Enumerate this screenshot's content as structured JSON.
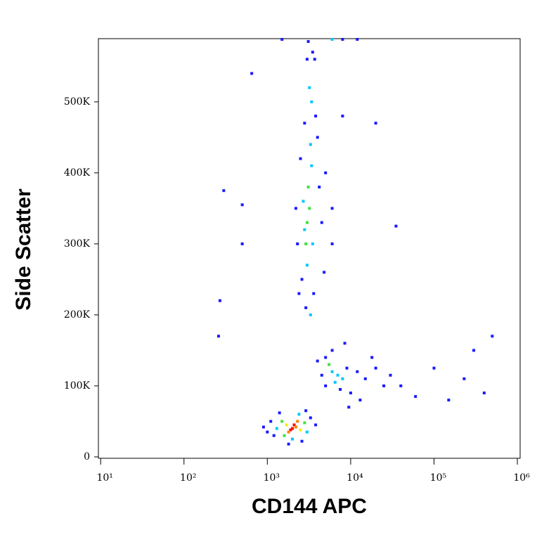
{
  "chart_data": {
    "type": "scatter",
    "x_label": "CD144 APC",
    "y_label": "Side Scatter",
    "xscale": "log",
    "xlim": [
      9.4,
      1080000
    ],
    "xticks": [
      {
        "value": 10,
        "label": "10¹"
      },
      {
        "value": 100,
        "label": "10²"
      },
      {
        "value": 1000,
        "label": "10³"
      },
      {
        "value": 10000,
        "label": "10⁴"
      },
      {
        "value": 100000,
        "label": "10⁵"
      },
      {
        "value": 1000000,
        "label": "10⁶"
      }
    ],
    "ylim": [
      -2000,
      589000
    ],
    "yticks": [
      0,
      {
        "value": 100000,
        "label": "100K"
      },
      {
        "value": 200000,
        "label": "200K"
      },
      {
        "value": 300000,
        "label": "300K"
      },
      {
        "value": 400000,
        "label": "400K"
      },
      {
        "value": 500000,
        "label": "500K"
      }
    ],
    "x": [
      2000,
      2100,
      1900,
      2200,
      1800,
      2300,
      1700,
      2500,
      1600,
      2800,
      1500,
      2000,
      2400,
      1300,
      3000,
      1200,
      3300,
      1100,
      1800,
      2600,
      1000,
      3800,
      1400,
      900,
      2900,
      6000,
      7000,
      5500,
      8000,
      6500,
      5000,
      9000,
      12000,
      15000,
      4500,
      7500,
      10000,
      20000,
      6000,
      8500,
      25000,
      13000,
      4000,
      18000,
      9500,
      30000,
      5000,
      3000,
      3200,
      2900,
      3100,
      2800,
      3400,
      3000,
      2700,
      3300,
      3500,
      2600,
      3800,
      3200,
      3000,
      3400,
      2500,
      4200,
      4500,
      2300,
      3600,
      2900,
      5000,
      2200,
      4000,
      3100,
      3500,
      2800,
      4800,
      6000,
      2400,
      3300,
      3700,
      8000,
      6000,
      300,
      500,
      270,
      260,
      500,
      650,
      35000,
      20000,
      300000,
      500000,
      230000,
      400000,
      150000,
      100000,
      60000,
      40000,
      6000,
      8000,
      12000,
      1500
    ],
    "y": [
      40000,
      45000,
      38000,
      42000,
      35000,
      50000,
      45000,
      38000,
      30000,
      48000,
      50000,
      25000,
      60000,
      40000,
      35000,
      30000,
      55000,
      50000,
      18000,
      22000,
      35000,
      45000,
      62000,
      42000,
      65000,
      120000,
      115000,
      130000,
      110000,
      105000,
      140000,
      125000,
      120000,
      110000,
      115000,
      95000,
      90000,
      125000,
      150000,
      160000,
      100000,
      80000,
      135000,
      140000,
      70000,
      115000,
      100000,
      330000,
      350000,
      300000,
      380000,
      320000,
      410000,
      270000,
      360000,
      440000,
      300000,
      250000,
      480000,
      520000,
      560000,
      500000,
      420000,
      380000,
      330000,
      300000,
      230000,
      210000,
      400000,
      350000,
      450000,
      585000,
      570000,
      470000,
      260000,
      350000,
      230000,
      200000,
      560000,
      480000,
      300000,
      375000,
      355000,
      220000,
      170000,
      300000,
      540000,
      325000,
      470000,
      150000,
      170000,
      110000,
      90000,
      80000,
      125000,
      85000,
      100000,
      588000,
      588000,
      588000,
      588000
    ],
    "point_colors": [
      "#ff0000",
      "#ff0000",
      "#ff0000",
      "#ff8000",
      "#ff8000",
      "#ff8000",
      "#f0f000",
      "#f0f000",
      "#40e040",
      "#40e040",
      "#40e040",
      "#00c8ff",
      "#00c8ff",
      "#00c8ff",
      "#00c8ff",
      "#1a1aff",
      "#1a1aff",
      "#1a1aff",
      "#1a1aff",
      "#1a1aff",
      "#1a1aff",
      "#1a1aff",
      "#1a1aff",
      "#1a1aff",
      "#1a1aff",
      "#00c8ff",
      "#00c8ff",
      "#40e040",
      "#00c8ff",
      "#00c8ff",
      "#1a1aff",
      "#1a1aff",
      "#1a1aff",
      "#1a1aff",
      "#1a1aff",
      "#1a1aff",
      "#1a1aff",
      "#1a1aff",
      "#1a1aff",
      "#1a1aff",
      "#1a1aff",
      "#1a1aff",
      "#1a1aff",
      "#1a1aff",
      "#1a1aff",
      "#1a1aff",
      "#1a1aff",
      "#40e040",
      "#40e040",
      "#40e040",
      "#40e040",
      "#00c8ff",
      "#00c8ff",
      "#00c8ff",
      "#00c8ff",
      "#00c8ff",
      "#00c8ff",
      "#1a1aff",
      "#1a1aff",
      "#00c8ff",
      "#1a1aff",
      "#00c8ff",
      "#1a1aff",
      "#1a1aff",
      "#1a1aff",
      "#1a1aff",
      "#1a1aff",
      "#1a1aff",
      "#1a1aff",
      "#1a1aff",
      "#1a1aff",
      "#1a1aff",
      "#1a1aff",
      "#1a1aff",
      "#1a1aff",
      "#1a1aff",
      "#1a1aff",
      "#00c8ff",
      "#1a1aff",
      "#1a1aff",
      "#1a1aff",
      "#1a1aff",
      "#1a1aff",
      "#1a1aff",
      "#1a1aff",
      "#1a1aff",
      "#1a1aff",
      "#1a1aff",
      "#1a1aff",
      "#1a1aff",
      "#1a1aff",
      "#1a1aff",
      "#1a1aff",
      "#1a1aff",
      "#1a1aff",
      "#1a1aff",
      "#1a1aff",
      "#00c8ff",
      "#1a1aff",
      "#1a1aff",
      "#1a1aff"
    ]
  }
}
